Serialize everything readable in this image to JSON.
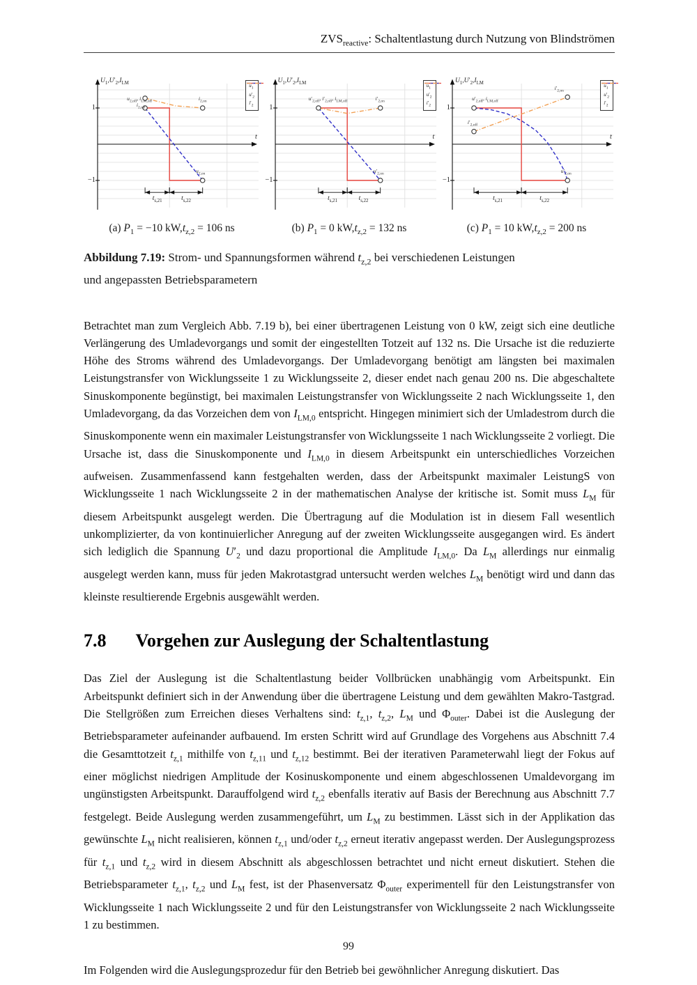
{
  "header": {
    "running_head_html": "ZVS<sub>reactive</sub>: Schaltentlastung durch Nutzung von Blindströmen"
  },
  "figure": {
    "caption_label": "Abbildung 7.19:",
    "caption_text_html": " Strom- und Spannungsformen während <i>t</i><sub>z,2</sub> bei verschiedenen Leistungen<br>und angepassten Betriebsparametern"
  },
  "section": {
    "number": "7.8",
    "title": "Vorgehen zur Auslegung der Schaltentlastung"
  },
  "paragraphs": [
    {
      "html": "Betrachtet man zum Vergleich Abb. 7.19 b), bei einer übertragenen Leistung von 0 kW, zeigt sich eine deutliche Verlängerung des Umladevorgangs und somit der eingestellten Totzeit auf 132 ns. Die Ursache ist die reduzierte Höhe des Stroms während des Umladevorgangs. Der Umladevorgang benötigt am längsten bei maximalen Leistungstransfer von Wicklungsseite 1 zu Wicklungsseite 2, dieser endet nach genau 200 ns. Die abgeschaltete Sinuskomponente begünstigt, bei maximalen Leistungstransfer von Wicklungsseite 2 nach Wicklungsseite 1, den Umladevorgang, da das Vorzeichen dem von <i>I</i><sub>LM,0</sub> entspricht. Hingegen minimiert sich der Umladestrom durch die Sinuskomponente wenn ein maximaler Leistungstransfer von Wicklungsseite 1 nach Wicklungsseite 2 vorliegt. Die Ursache ist, dass die Sinuskomponente und <i>I</i><sub>LM,0</sub> in diesem Arbeitspunkt ein unterschiedliches Vorzeichen aufweisen. Zusammenfassend kann festgehalten werden, dass der Arbeitspunkt maximaler LeistungS von Wicklungsseite 1 nach Wicklungsseite 2 in der mathematischen Analyse der kritische ist. Somit muss <i>L</i><sub>M</sub> für diesem Arbeitspunkt ausgelegt werden. Die Übertragung auf die Modulation ist in diesem Fall wesentlich unkomplizierter, da von kontinuierlicher Anregung auf der zweiten Wicklungsseite ausgegangen wird. Es ändert sich lediglich die Spannung <i>U</i>′<sub>2</sub> und dazu proportional die Amplitude <i>I</i><sub>LM,0</sub>. Da <i>L</i><sub>M</sub> allerdings nur einmalig ausgelegt werden kann, muss für jeden Makrotastgrad untersucht werden welches <i>L</i><sub>M</sub> benötigt wird und dann das kleinste resultierende Ergebnis ausgewählt werden."
    },
    {
      "html": "Das Ziel der Auslegung ist die Schaltentlastung beider Vollbrücken unabhängig vom Arbeitspunkt. Ein Arbeitspunkt definiert sich in der Anwendung über die übertragene Leistung und dem gewählten Makro-Tastgrad. Die Stellgrößen zum Erreichen dieses Verhaltens sind: <i>t</i><sub>z,1</sub>, <i>t</i><sub>z,2</sub>, <i>L</i><sub>M</sub> und Φ<sub>outer</sub>. Dabei ist die Auslegung der Betriebsparameter aufeinander aufbauend. Im ersten Schritt wird auf Grundlage des Vorgehens aus Abschnitt 7.4 die Gesamttotzeit <i>t</i><sub>z,1</sub> mithilfe von <i>t</i><sub>z,11</sub> und <i>t</i><sub>z,12</sub> bestimmt. Bei der iterativen Parameterwahl liegt der Fokus auf einer möglichst niedrigen Amplitude der Kosinuskomponente und einem abgeschlossenen Umaldevorgang im ungünstigsten Arbeitspunkt. Darauffolgend wird <i>t</i><sub>z,2</sub> ebenfalls iterativ auf Basis der Berechnung aus Abschnitt 7.7 festgelegt. Beide Auslegung werden zusammengeführt, um <i>L</i><sub>M</sub> zu bestimmen. Lässt sich in der Applikation das gewünschte <i>L</i><sub>M</sub> nicht realisieren, können <i>t</i><sub>z,1</sub> und/oder <i>t</i><sub>z,2</sub> erneut iterativ angepasst werden. Der Auslegungsprozess für <i>t</i><sub>z,1</sub> und <i>t</i><sub>z,2</sub> wird in diesem Abschnitt als abgeschlossen betrachtet und nicht erneut diskutiert. Stehen die Betriebsparameter <i>t</i><sub>z,1</sub>, <i>t</i><sub>z,2</sub> und <i>L</i><sub>M</sub> fest, ist der Phasenversatz Φ<sub>outer</sub> experimentell für den Leistungstransfer von Wicklungsseite 1 nach Wicklungsseite 2 und für den Leistungstransfer von Wicklungsseite 2 nach Wicklungsseite 1 zu bestimmen."
    },
    {
      "html": "Im Folgenden wird die Auslegungsprozedur für den Betrieb bei gewöhnlicher Anregung diskutiert. Das"
    }
  ],
  "footer": {
    "page_number": "99"
  },
  "colors": {
    "u1_red": "#e6433c",
    "u2_blue": "#3030c8",
    "i2_orange": "#f2a053",
    "grid": "#dcdcdc",
    "axis": "#111111"
  },
  "chart_data": [
    {
      "id": "a",
      "type": "line",
      "caption_html": "(a) <i>P</i><sub>1</sub> = −10 kW,<i>t</i><sub>z,2</sub> = 106 ns",
      "ylabel_html": "<i>U</i><sub>1</sub>,<i>U</i>′<sub>2</sub>,<i>I</i><sub>LM</sub>",
      "xlabel_html": "<i>t</i>",
      "xlim": [
        0,
        1.08
      ],
      "ylim": [
        -1.75,
        1.75
      ],
      "yticks": [
        {
          "v": 1,
          "label": "1"
        },
        {
          "v": -1,
          "label": "−1"
        }
      ],
      "grid_y": [
        -1.5,
        -1.25,
        -1,
        -0.75,
        -0.5,
        -0.25,
        0.25,
        0.5,
        0.75,
        1,
        1.25,
        1.5
      ],
      "grid_x": [
        0.5,
        0.9
      ],
      "legend": [
        {
          "label_html": "<i>u</i><sub>1</sub>",
          "color": "#e6433c",
          "dash": "solid"
        },
        {
          "label_html": "<i>u</i>′<sub>2</sub>",
          "color": "#3030c8",
          "dash": "dashed"
        },
        {
          "label_html": "<i>i</i>′<sub>2</sub>",
          "color": "#f2a053",
          "dash": "dashdot"
        }
      ],
      "series": [
        {
          "name": "u1",
          "color": "#e6433c",
          "dash": "solid",
          "points": [
            [
              0.33,
              1
            ],
            [
              0.5,
              1
            ],
            [
              0.5,
              -1
            ],
            [
              0.73,
              -1
            ]
          ]
        },
        {
          "name": "u2p",
          "color": "#3030c8",
          "dash": "dashed",
          "points": [
            [
              0.33,
              1
            ],
            [
              0.73,
              -1
            ]
          ]
        },
        {
          "name": "i2p",
          "color": "#f2a053",
          "dash": "dashdot",
          "points": [
            [
              0.33,
              1.27
            ],
            [
              0.54,
              1.06
            ],
            [
              0.73,
              1
            ]
          ]
        }
      ],
      "markers": [
        {
          "x": 0.33,
          "y": 1.27,
          "label_html": "<i>i</i><sub>2,off</sub>",
          "place": "below",
          "dx": -6
        },
        {
          "x": 0.33,
          "y": 1.0,
          "label_html": "<i>u</i><sub>2,off</sub>, <i>i</i><sub>LM,off</sub>",
          "place": "above",
          "dx": -8
        },
        {
          "x": 0.73,
          "y": 1.0,
          "label_html": "<i>i</i><sub>2,on</sub>",
          "place": "above",
          "dx": 0
        },
        {
          "x": 0.73,
          "y": -1.0,
          "label_html": "<i>u</i><sub>2,on</sub>",
          "place": "above",
          "dx": -3
        }
      ],
      "spans": [
        {
          "from": 0.33,
          "to": 0.5,
          "y": -1.33,
          "label_html": "<i>t</i><sub>s,21</sub>"
        },
        {
          "from": 0.5,
          "to": 0.73,
          "y": -1.33,
          "label_html": "<i>t</i><sub>s,22</sub>"
        }
      ]
    },
    {
      "id": "b",
      "type": "line",
      "caption_html": "(b) <i>P</i><sub>1</sub> = 0 kW,<i>t</i><sub>z,2</sub> = 132 ns",
      "ylabel_html": "<i>U</i><sub>1</sub>,<i>U</i>′<sub>2</sub>,<i>I</i><sub>LM</sub>",
      "xlabel_html": "<i>t</i>",
      "xlim": [
        0,
        1.08
      ],
      "ylim": [
        -1.75,
        1.75
      ],
      "yticks": [
        {
          "v": 1,
          "label": "1"
        },
        {
          "v": -1,
          "label": "−1"
        }
      ],
      "grid_y": [
        -1.5,
        -1.25,
        -1,
        -0.75,
        -0.5,
        -0.25,
        0.25,
        0.5,
        0.75,
        1,
        1.25,
        1.5
      ],
      "grid_x": [
        0.5,
        0.9
      ],
      "legend": [
        {
          "label_html": "<i>u</i><sub>1</sub>",
          "color": "#e6433c",
          "dash": "solid"
        },
        {
          "label_html": "<i>u</i>′<sub>2</sub>",
          "color": "#3030c8",
          "dash": "dashed"
        },
        {
          "label_html": "<i>i</i>′<sub>2</sub>",
          "color": "#f2a053",
          "dash": "dashdot"
        }
      ],
      "series": [
        {
          "name": "u1",
          "color": "#e6433c",
          "dash": "solid",
          "points": [
            [
              0.3,
              1
            ],
            [
              0.5,
              1
            ],
            [
              0.5,
              -1
            ],
            [
              0.73,
              -1
            ]
          ]
        },
        {
          "name": "u2p",
          "color": "#3030c8",
          "dash": "dashed",
          "points": [
            [
              0.3,
              1
            ],
            [
              0.73,
              -1
            ]
          ]
        },
        {
          "name": "i2p",
          "color": "#f2a053",
          "dash": "dashdot",
          "points": [
            [
              0.3,
              1
            ],
            [
              0.5,
              0.85
            ],
            [
              0.73,
              1
            ]
          ]
        }
      ],
      "markers": [
        {
          "x": 0.3,
          "y": 1.0,
          "label_html": "<i>u</i>′<sub>2,off</sub>, <i>i</i>′<sub>2,off</sub>, <i>i</i><sub>LM,off</sub>",
          "place": "above",
          "dx": 14
        },
        {
          "x": 0.73,
          "y": 1.0,
          "label_html": "<i>i</i>′<sub>2,on</sub>",
          "place": "above",
          "dx": 0
        },
        {
          "x": 0.73,
          "y": -1.0,
          "label_html": "<i>u</i>′<sub>2,on</sub>",
          "place": "above",
          "dx": -2
        }
      ],
      "spans": [
        {
          "from": 0.3,
          "to": 0.5,
          "y": -1.33,
          "label_html": "<i>t</i><sub>s,21</sub>"
        },
        {
          "from": 0.5,
          "to": 0.73,
          "y": -1.33,
          "label_html": "<i>t</i><sub>s,22</sub>"
        }
      ]
    },
    {
      "id": "c",
      "type": "line",
      "caption_html": "(c) <i>P</i><sub>1</sub> = 10 kW,<i>t</i><sub>z,2</sub> = 200 ns",
      "ylabel_html": "<i>U</i><sub>1</sub>,<i>U</i>′<sub>2</sub>,<i>I</i><sub>LM</sub>",
      "xlabel_html": "<i>t</i>",
      "xlim": [
        0,
        1.08
      ],
      "ylim": [
        -1.75,
        1.75
      ],
      "yticks": [
        {
          "v": 1,
          "label": "1"
        },
        {
          "v": -1,
          "label": "−1"
        }
      ],
      "grid_y": [
        -1.5,
        -1.25,
        -1,
        -0.75,
        -0.5,
        -0.25,
        0.25,
        0.5,
        0.75,
        1,
        1.25,
        1.5
      ],
      "grid_x": [
        0.48,
        0.9
      ],
      "legend": [
        {
          "label_html": "<i>u</i><sub>1</sub>",
          "color": "#e6433c",
          "dash": "solid"
        },
        {
          "label_html": "<i>u</i>′<sub>2</sub>",
          "color": "#3030c8",
          "dash": "dashed"
        },
        {
          "label_html": "<i>i</i>′<sub>2</sub>",
          "color": "#f2a053",
          "dash": "dashdot"
        }
      ],
      "series": [
        {
          "name": "u1",
          "color": "#e6433c",
          "dash": "solid",
          "points": [
            [
              0.15,
              1
            ],
            [
              0.48,
              1
            ],
            [
              0.48,
              -1
            ],
            [
              0.8,
              -1
            ]
          ]
        },
        {
          "name": "u2p",
          "color": "#3030c8",
          "dash": "dashed",
          "points": [
            [
              0.15,
              1
            ],
            [
              0.27,
              0.95
            ],
            [
              0.38,
              0.84
            ],
            [
              0.48,
              0.65
            ],
            [
              0.58,
              0.38
            ],
            [
              0.66,
              0.05
            ],
            [
              0.73,
              -0.38
            ],
            [
              0.78,
              -0.75
            ],
            [
              0.8,
              -1
            ]
          ]
        },
        {
          "name": "i2p",
          "color": "#f2a053",
          "dash": "dashdot",
          "points": [
            [
              0.15,
              0.35
            ],
            [
              0.8,
              1.3
            ]
          ]
        }
      ],
      "markers": [
        {
          "x": 0.15,
          "y": 1.0,
          "label_html": "<i>u</i>′<sub>2,off</sub>, <i>i</i><sub>LM,off</sub>",
          "place": "above",
          "dx": 16
        },
        {
          "x": 0.15,
          "y": 0.35,
          "label_html": "<i>i</i>′<sub>2,off</sub>",
          "place": "above",
          "dx": -2
        },
        {
          "x": 0.8,
          "y": 1.3,
          "label_html": "<i>i</i>′<sub>2,on</sub>",
          "place": "above",
          "dx": -12
        },
        {
          "x": 0.8,
          "y": -1.0,
          "label_html": "<i>u</i>′<sub>2,on</sub>",
          "place": "above",
          "dx": -2
        }
      ],
      "spans": [
        {
          "from": 0.15,
          "to": 0.48,
          "y": -1.33,
          "label_html": "<i>t</i><sub>s,21</sub>"
        },
        {
          "from": 0.48,
          "to": 0.8,
          "y": -1.33,
          "label_html": "<i>t</i><sub>s,22</sub>"
        }
      ]
    }
  ]
}
